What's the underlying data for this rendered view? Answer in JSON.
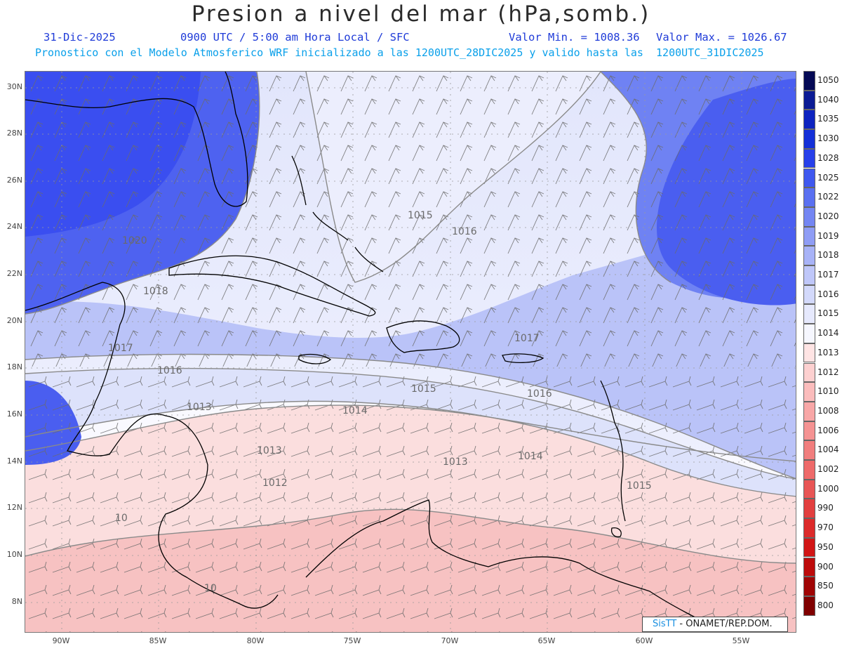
{
  "header": {
    "title": "Presion a nivel del mar (hPa,somb.)",
    "date": "31-Dic-2025",
    "time_line": "0900 UTC / 5:00 am Hora Local / SFC",
    "min_value": "Valor Min. = 1008.36",
    "max_value": "Valor Max. = 1026.67",
    "forecast_line": "Pronostico con el Modelo Atmosferico WRF inicializado a las 1200UTC_28DIC2025 y valido hasta las  1200UTC_31DIC2025"
  },
  "axes": {
    "lat_labels": [
      "30N",
      "28N",
      "26N",
      "24N",
      "22N",
      "20N",
      "18N",
      "16N",
      "14N",
      "12N",
      "10N",
      "8N"
    ],
    "lon_labels": [
      "90W",
      "85W",
      "80W",
      "75W",
      "70W",
      "65W",
      "60W",
      "55W"
    ]
  },
  "contour_labels": [
    "1015",
    "1016",
    "1020",
    "1018",
    "1017",
    "1016",
    "1015",
    "1014",
    "1013",
    "1012",
    "1013",
    "1014",
    "1013",
    "1015",
    "1016",
    "1017",
    "10",
    "10"
  ],
  "legend": {
    "labels": [
      "1050",
      "1040",
      "1035",
      "1030",
      "1028",
      "1025",
      "1022",
      "1020",
      "1019",
      "1018",
      "1017",
      "1016",
      "1015",
      "1014",
      "1013",
      "1012",
      "1010",
      "1008",
      "1006",
      "1004",
      "1002",
      "1000",
      "990",
      "970",
      "950",
      "900",
      "850",
      "800"
    ],
    "colors": [
      "#050a55",
      "#0b1b95",
      "#0d23c0",
      "#1430d8",
      "#2740ea",
      "#3f58ef",
      "#5a70f1",
      "#7486f3",
      "#8f9df5",
      "#a8b3f7",
      "#bfc7f9",
      "#d3d9fb",
      "#e6e9fd",
      "#f6f7ff",
      "#ffe4e4",
      "#fdd0d0",
      "#fbbcbc",
      "#f8a7a7",
      "#f59393",
      "#f17e7e",
      "#ee6a6a",
      "#e85555",
      "#e23f3f",
      "#dc2a2a",
      "#d11515",
      "#bd0b0b",
      "#a00505",
      "#800000"
    ]
  },
  "credit": {
    "brand": "SisTT",
    "rest": " - ONAMET/REP.DOM."
  },
  "colors": {
    "high_pressure": "#3a4ef0",
    "low_pressure": "#f6b8b8",
    "land_line": "#000000",
    "isobar": "#8a8a8a",
    "wind_barb": "#555555"
  }
}
